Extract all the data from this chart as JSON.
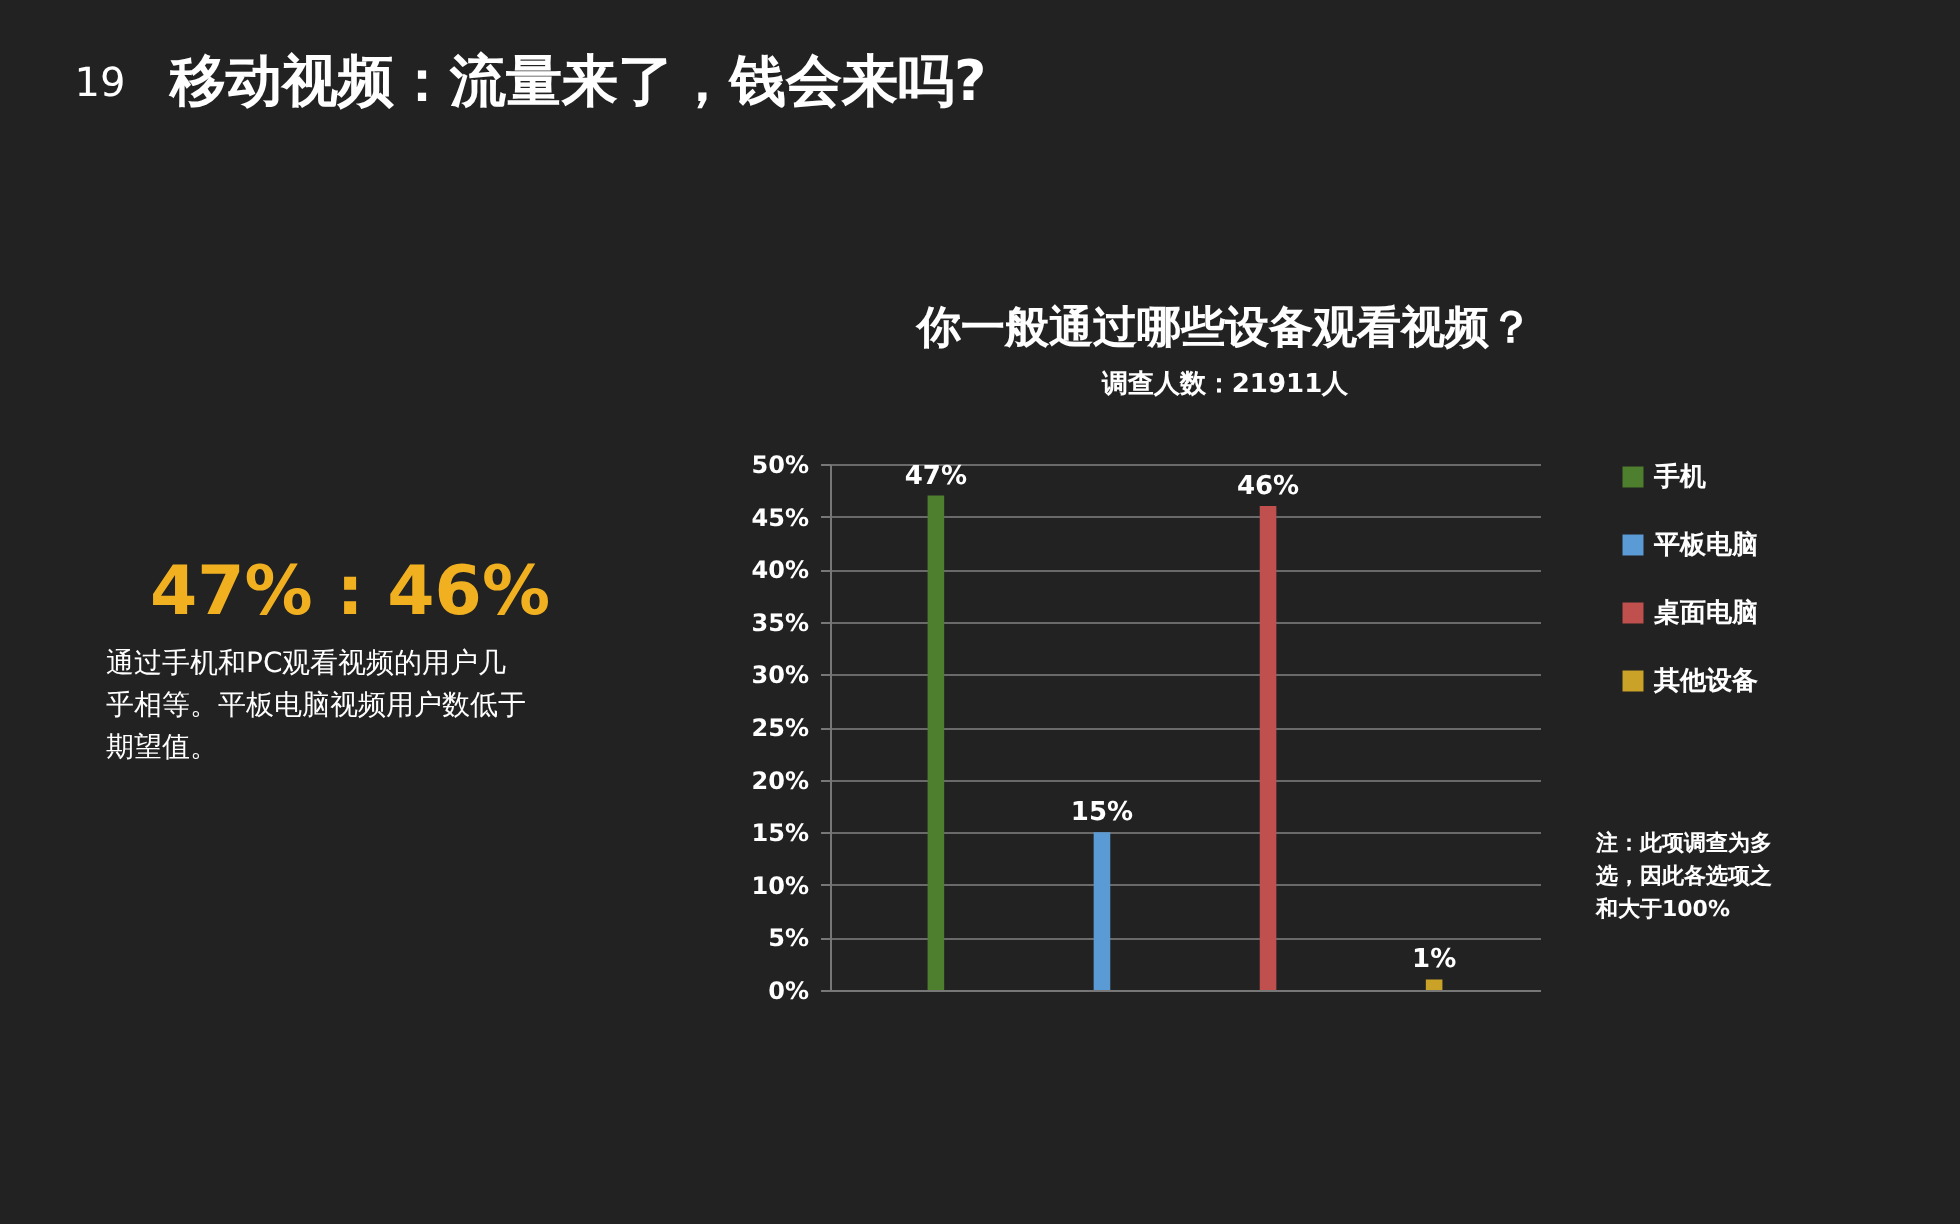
{
  "chart_data": {
    "type": "bar",
    "title": "你一般通过哪些设备观看视频？",
    "subtitle": "调查人数：21911人",
    "categories": [
      null
    ],
    "series": [
      {
        "name": "手机",
        "color": "#4e7f2e",
        "values": [
          47
        ],
        "value_labels": [
          "47%"
        ]
      },
      {
        "name": "平板电脑",
        "color": "#5b9bd5",
        "values": [
          15
        ],
        "value_labels": [
          "15%"
        ]
      },
      {
        "name": "桌面电脑",
        "color": "#c0504d",
        "values": [
          46
        ],
        "value_labels": [
          "46%"
        ]
      },
      {
        "name": "其他设备",
        "color": "#c9a227",
        "values": [
          1
        ],
        "value_labels": [
          "1%"
        ]
      }
    ],
    "ylim": [
      0,
      50
    ],
    "yticks": [
      {
        "value": 0,
        "label": "0%"
      },
      {
        "value": 5,
        "label": "5%"
      },
      {
        "value": 10,
        "label": "10%"
      },
      {
        "value": 15,
        "label": "15%"
      },
      {
        "value": 20,
        "label": "20%"
      },
      {
        "value": 25,
        "label": "25%"
      },
      {
        "value": 30,
        "label": "30%"
      },
      {
        "value": 35,
        "label": "35%"
      },
      {
        "value": 40,
        "label": "40%"
      },
      {
        "value": 45,
        "label": "45%"
      },
      {
        "value": 50,
        "label": "50%"
      }
    ],
    "grid": "y",
    "legend": "right",
    "tick_labels": "y",
    "annotations": [
      "19",
      "移动视频：流量来了，钱会来吗?",
      "47% : 46%",
      "通过手机和PC观看视频的用户几乎相等。平板电脑视频用户数低于期望值。",
      "注：此项调查为多选，因此各选项之和大于100%"
    ]
  }
}
